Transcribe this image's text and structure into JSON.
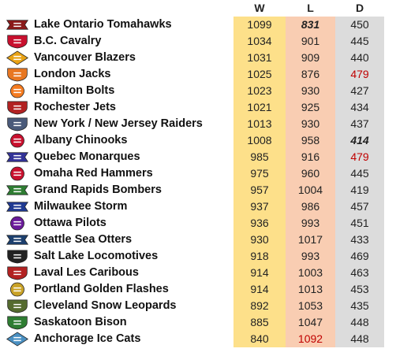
{
  "headers": {
    "w": "W",
    "l": "L",
    "d": "D"
  },
  "colors": {
    "w_bg": "#fde08a",
    "l_bg": "#f9cdb2",
    "d_bg": "#dcdcdc",
    "highlight_red": "#c00000"
  },
  "teams": [
    {
      "name": "Lake Ontario Tomahawks",
      "w": "1099",
      "l": "831",
      "d": "450",
      "logo": "tomahawks-logo",
      "logo_color": "#8b1a1a"
    },
    {
      "name": "B.C. Cavalry",
      "w": "1034",
      "l": "901",
      "d": "445",
      "logo": "cavalry-logo",
      "logo_color": "#c8102e"
    },
    {
      "name": "Vancouver Blazers",
      "w": "1031",
      "l": "909",
      "d": "440",
      "logo": "blazers-logo",
      "logo_color": "#e8a317"
    },
    {
      "name": "London Jacks",
      "w": "1025",
      "l": "876",
      "d": "479",
      "logo": "jacks-logo",
      "logo_color": "#e87722"
    },
    {
      "name": "Hamilton Bolts",
      "w": "1023",
      "l": "930",
      "d": "427",
      "logo": "bolts-logo",
      "logo_color": "#f47b20"
    },
    {
      "name": "Rochester Jets",
      "w": "1021",
      "l": "925",
      "d": "434",
      "logo": "jets-logo",
      "logo_color": "#b22222"
    },
    {
      "name": "New York / New Jersey Raiders",
      "w": "1013",
      "l": "930",
      "d": "437",
      "logo": "raiders-logo",
      "logo_color": "#4a5a7a"
    },
    {
      "name": "Albany Chinooks",
      "w": "1008",
      "l": "958",
      "d": "414",
      "logo": "chinooks-logo",
      "logo_color": "#c8102e"
    },
    {
      "name": "Quebec Monarques",
      "w": "985",
      "l": "916",
      "d": "479",
      "logo": "monarques-logo",
      "logo_color": "#333399"
    },
    {
      "name": "Omaha Red Hammers",
      "w": "975",
      "l": "960",
      "d": "445",
      "logo": "red-hammers-logo",
      "logo_color": "#c8102e"
    },
    {
      "name": "Grand Rapids Bombers",
      "w": "957",
      "l": "1004",
      "d": "419",
      "logo": "bombers-logo",
      "logo_color": "#2e7d32"
    },
    {
      "name": "Milwaukee Storm",
      "w": "937",
      "l": "986",
      "d": "457",
      "logo": "storm-logo",
      "logo_color": "#1f3a93"
    },
    {
      "name": "Ottawa Pilots",
      "w": "936",
      "l": "993",
      "d": "451",
      "logo": "pilots-logo",
      "logo_color": "#6a1b9a"
    },
    {
      "name": "Seattle Sea Otters",
      "w": "930",
      "l": "1017",
      "d": "433",
      "logo": "sea-otters-logo",
      "logo_color": "#1c3f6e"
    },
    {
      "name": "Salt Lake Locomotives",
      "w": "918",
      "l": "993",
      "d": "469",
      "logo": "locomotives-logo",
      "logo_color": "#222222"
    },
    {
      "name": "Laval Les Caribous",
      "w": "914",
      "l": "1003",
      "d": "463",
      "logo": "caribous-logo",
      "logo_color": "#b22222"
    },
    {
      "name": "Portland Golden Flashes",
      "w": "914",
      "l": "1013",
      "d": "453",
      "logo": "golden-flashes-logo",
      "logo_color": "#c9a227"
    },
    {
      "name": "Cleveland Snow Leopards",
      "w": "892",
      "l": "1053",
      "d": "435",
      "logo": "snow-leopards-logo",
      "logo_color": "#556b2f"
    },
    {
      "name": "Saskatoon Bison",
      "w": "885",
      "l": "1047",
      "d": "448",
      "logo": "bison-logo",
      "logo_color": "#2e7d32"
    },
    {
      "name": "Anchorage Ice Cats",
      "w": "840",
      "l": "1092",
      "d": "448",
      "logo": "ice-cats-logo",
      "logo_color": "#4a90c2"
    }
  ],
  "highlights": {
    "bold_italic": [
      {
        "row": 0,
        "col": "l"
      },
      {
        "row": 7,
        "col": "d"
      }
    ],
    "red": [
      {
        "row": 3,
        "col": "d"
      },
      {
        "row": 8,
        "col": "d"
      },
      {
        "row": 19,
        "col": "l"
      }
    ]
  }
}
